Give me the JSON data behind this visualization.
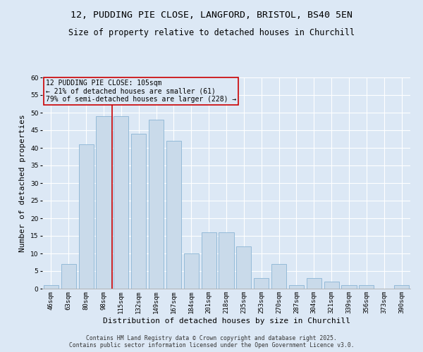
{
  "title1": "12, PUDDING PIE CLOSE, LANGFORD, BRISTOL, BS40 5EN",
  "title2": "Size of property relative to detached houses in Churchill",
  "xlabel": "Distribution of detached houses by size in Churchill",
  "ylabel": "Number of detached properties",
  "categories": [
    "46sqm",
    "63sqm",
    "80sqm",
    "98sqm",
    "115sqm",
    "132sqm",
    "149sqm",
    "167sqm",
    "184sqm",
    "201sqm",
    "218sqm",
    "235sqm",
    "253sqm",
    "270sqm",
    "287sqm",
    "304sqm",
    "321sqm",
    "339sqm",
    "356sqm",
    "373sqm",
    "390sqm"
  ],
  "values": [
    1,
    7,
    41,
    49,
    49,
    44,
    48,
    42,
    10,
    16,
    16,
    12,
    3,
    7,
    1,
    3,
    2,
    1,
    1,
    0,
    1
  ],
  "bar_color": "#c9daea",
  "bar_edge_color": "#8ab4d4",
  "background_color": "#dce8f5",
  "grid_color": "#ffffff",
  "annotation_box_text": "12 PUDDING PIE CLOSE: 105sqm\n← 21% of detached houses are smaller (61)\n79% of semi-detached houses are larger (228) →",
  "annotation_box_color": "#cc0000",
  "vline_x_index": 3.5,
  "vline_color": "#cc0000",
  "ylim": [
    0,
    60
  ],
  "yticks": [
    0,
    5,
    10,
    15,
    20,
    25,
    30,
    35,
    40,
    45,
    50,
    55,
    60
  ],
  "footer": "Contains HM Land Registry data © Crown copyright and database right 2025.\nContains public sector information licensed under the Open Government Licence v3.0.",
  "title_fontsize": 9.5,
  "subtitle_fontsize": 8.5,
  "annotation_fontsize": 7.0,
  "tick_fontsize": 6.5,
  "ylabel_fontsize": 8,
  "xlabel_fontsize": 8,
  "footer_fontsize": 5.8
}
